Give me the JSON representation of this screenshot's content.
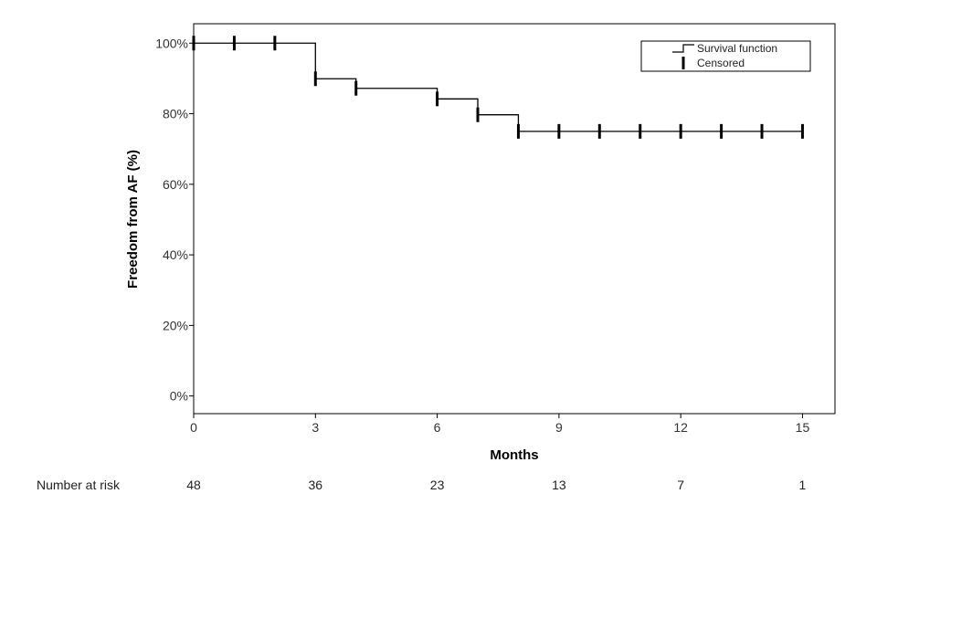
{
  "chart_data": {
    "type": "line",
    "step": true,
    "xlabel": "Months",
    "ylabel": "Freedom from AF (%)",
    "xlim": [
      0,
      15.8
    ],
    "ylim": [
      -5,
      105.5
    ],
    "xticks": [
      0,
      3,
      6,
      9,
      12,
      15
    ],
    "xtick_labels": [
      "0",
      "3",
      "6",
      "9",
      "12",
      "15"
    ],
    "yticks": [
      0,
      20,
      40,
      60,
      80,
      100
    ],
    "ytick_labels": [
      "0%",
      "20%",
      "40%",
      "60%",
      "80%",
      "100%"
    ],
    "grid": false,
    "legend": {
      "placement": "top-right",
      "entries": [
        {
          "label": "Survival function",
          "marker": "step-line"
        },
        {
          "label": "Censored",
          "marker": "vertical-tick"
        }
      ]
    },
    "series": [
      {
        "name": "Survival function",
        "steps": [
          {
            "x": 0,
            "y": 100
          },
          {
            "x": 3,
            "y": 89.9
          },
          {
            "x": 6,
            "y": 84.2
          },
          {
            "x": 7,
            "y": 79.7
          },
          {
            "x": 8,
            "y": 75
          }
        ],
        "flat_segments": [
          {
            "from": 3,
            "to": 4,
            "y": 89.9
          },
          {
            "from": 4,
            "to": 6,
            "y": 87.2
          }
        ],
        "x_end": 15,
        "censored_times": [
          0,
          1,
          2,
          3,
          4,
          6,
          7,
          8,
          9,
          10,
          11,
          12,
          13,
          14,
          15
        ],
        "color": "#000000"
      }
    ],
    "risk_table": {
      "label": "Number at risk",
      "x": [
        0,
        3,
        6,
        9,
        12,
        15
      ],
      "values": [
        "48",
        "36",
        "23",
        "13",
        "7",
        "1"
      ]
    }
  }
}
